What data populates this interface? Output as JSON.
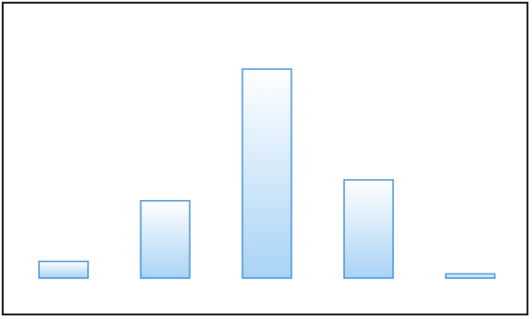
{
  "chart_data": {
    "type": "bar",
    "categories": [
      "",
      "",
      "",
      "",
      ""
    ],
    "values": [
      8,
      37,
      100,
      47,
      2
    ],
    "ylim": [
      0,
      100
    ],
    "grid": false,
    "legend": "none",
    "title": "",
    "xlabel": "",
    "ylabel": ""
  },
  "colors": {
    "bar_stroke": "#3f8fd6",
    "bar_fill_top": "#ffffff",
    "bar_fill_bottom": "#a9d3f5",
    "frame_border": "#111111"
  }
}
